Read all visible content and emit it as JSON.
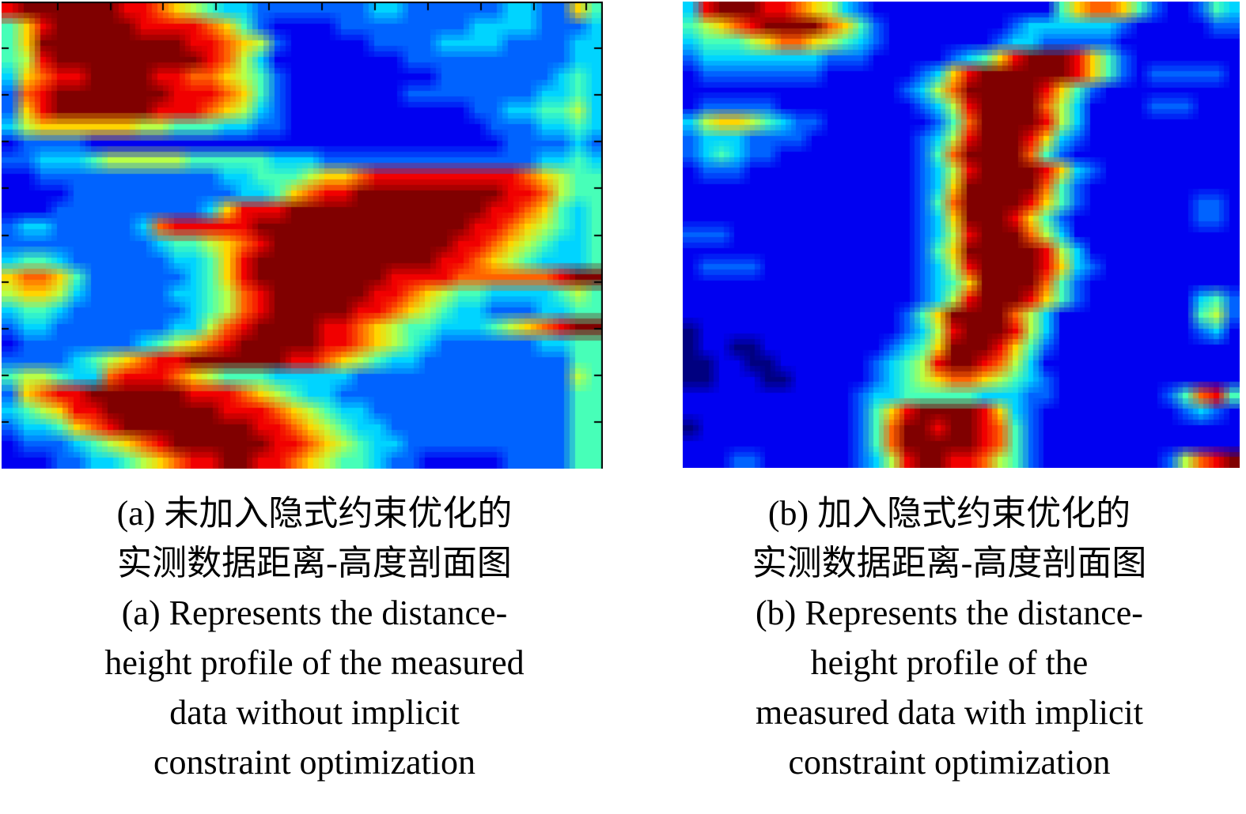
{
  "figure": {
    "panels": [
      {
        "id": "a",
        "caption_lines": [
          "(a) 未加入隐式约束优化的",
          "实测数据距离-高度剖面图",
          "(a) Represents the distance-",
          "height profile of the measured",
          "data without implicit",
          "constraint optimization"
        ]
      },
      {
        "id": "b",
        "caption_lines": [
          "(b) 加入隐式约束优化的",
          "实测数据距离-高度剖面图",
          "(b) Represents the distance-",
          "height profile of the",
          "measured data with implicit",
          "constraint optimization"
        ]
      }
    ]
  },
  "chart_data": [
    {
      "type": "heatmap",
      "panel": "a",
      "title": "Measured data range-height profile without implicit constraint optimization",
      "colormap": "jet",
      "value_range": [
        0,
        9
      ],
      "axes": {
        "border_color": "#000000",
        "borders": [
          "top",
          "right"
        ],
        "x_tick_fracs_top": [
          0.093,
          0.181,
          0.269,
          0.357,
          0.445,
          0.533,
          0.621,
          0.709,
          0.797,
          0.885,
          0.973
        ],
        "y_tick_fracs_left": [
          0.1,
          0.2,
          0.3,
          0.4,
          0.5,
          0.6,
          0.7,
          0.8,
          0.9
        ],
        "y_tick_fracs_right": [
          0.1,
          0.2,
          0.3,
          0.4,
          0.5,
          0.6,
          0.7,
          0.8,
          0.9
        ],
        "tick_labels": ""
      },
      "grid": [
        "899999988765433222222233222222332264",
        "468999998888764211112222222233332223",
        "469999999998876521111122223333222233",
        "458999999999875311111111222222222233",
        "367889999887765421111111112222222343",
        "278999999988876421111111222222223343",
        "268999999888765321111111111122334453",
        "356666665544433221111111111112223343",
        "122221111111111111111111111111222232",
        "223334555554444433322222222222223343",
        "112222222222233444566788888888876544",
        "111122222222223346788999999999887544",
        "111222222222368889999999999998876434",
        "233222223788888999999999999988765434",
        "222222222344567899999999999887654334",
        "344322222233468999999999998876543334",
        "677642222223468999999998888777777899",
        "566532222233457899999988765443333454",
        "344322222223457899999887654332223344",
        "233222222233578999988765443334567899",
        "122222223456789999988765432222223344",
        "222234567889999998876543322222222244",
        "455433788876544433333222222222222254",
        "267889999998887654332222222222222244",
        "345688999999988876543322222222222244",
        "233467899999999887654332222222222244",
        "122234567899999988765433222222222244",
        "111223345678899887654432211111222244"
      ]
    },
    {
      "type": "heatmap",
      "panel": "b",
      "title": "Measured data range-height profile with implicit constraint optimization",
      "colormap": "jet",
      "value_range": [
        0,
        9
      ],
      "axes": null,
      "grid": [
        "389998876532111111111111467764211243",
        "456789999764211111111233333321111122",
        "344456776543211111112332222211111111",
        "233333333222111112346899986421111111",
        "122222222111111236899999986421222221",
        "111111111111112357999998642111111111",
        "122222111111111235899997531111222111",
        "356654322111111124799998531111111111",
        "233322221111111235899986321111111111",
        "234322111111111247999974211111111111",
        "122211111111111235899998632111111111",
        "111111111111111236999997421111111111",
        "111111111111111247999986421111111221",
        "111111111111111236999864211111111221",
        "222111111111111235899975311111111111",
        "111111111111111246999998531111111111",
        "122221111111111235899998632111111111",
        "111111111111111234699997421111111111",
        "111111111111111235899986421111111342",
        "111111111111112469999753111111111452",
        "011111111111112358999853111111111231",
        "011001111111123469998642111111111111",
        "001100111111234589987531111111111111",
        "001110011111234567765432111111111111",
        "111111111112334444433322111111124784",
        "111111111112468999986321111111112321",
        "011111111112479989987421111111111111",
        "111111111112479999987421111111111111",
        "111221111112358998875421111111125789"
      ]
    }
  ]
}
